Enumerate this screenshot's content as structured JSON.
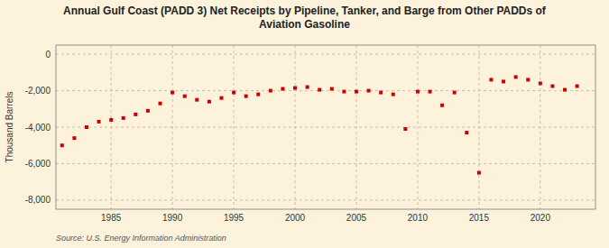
{
  "chart_data": {
    "type": "scatter",
    "title": "Annual Gulf Coast (PADD 3) Net Receipts by Pipeline, Tanker, and Barge from Other PADDs of\nAviation Gasoline",
    "ylabel": "Thousand Barrels",
    "annotations": [
      "Source: U.S. Energy Information Administration"
    ],
    "color": "#cc0000",
    "marker": "square",
    "grid": true,
    "x": [
      1981,
      1982,
      1983,
      1984,
      1985,
      1986,
      1987,
      1988,
      1989,
      1990,
      1991,
      1992,
      1993,
      1994,
      1995,
      1996,
      1997,
      1998,
      1999,
      2000,
      2001,
      2002,
      2003,
      2004,
      2005,
      2006,
      2007,
      2008,
      2009,
      2010,
      2011,
      2012,
      2013,
      2014,
      2015,
      2016,
      2017,
      2018,
      2019,
      2020,
      2021,
      2022,
      2023
    ],
    "values": [
      -5000,
      -4600,
      -4000,
      -3700,
      -3600,
      -3500,
      -3300,
      -3100,
      -2700,
      -2100,
      -2300,
      -2500,
      -2600,
      -2400,
      -2100,
      -2300,
      -2200,
      -2000,
      -1900,
      -1850,
      -1800,
      -1950,
      -1900,
      -2050,
      -2050,
      -2000,
      -2100,
      -2200,
      -4100,
      -2050,
      -2050,
      -2800,
      -2100,
      -4300,
      -6500,
      -1400,
      -1500,
      -1250,
      -1400,
      -1600,
      -1750,
      -1950,
      -1750
    ],
    "xlim": [
      1980.5,
      2024.5
    ],
    "xticks": [
      1985,
      1990,
      1995,
      2000,
      2005,
      2010,
      2015,
      2020
    ],
    "ylim": [
      -8500,
      500
    ],
    "yticks": [
      0,
      {
        "value": -2000,
        "label": "-2,000"
      },
      {
        "value": -4000,
        "label": "-4,000"
      },
      {
        "value": -6000,
        "label": "-6,000"
      },
      {
        "value": -8000,
        "label": "-8,000"
      }
    ]
  }
}
